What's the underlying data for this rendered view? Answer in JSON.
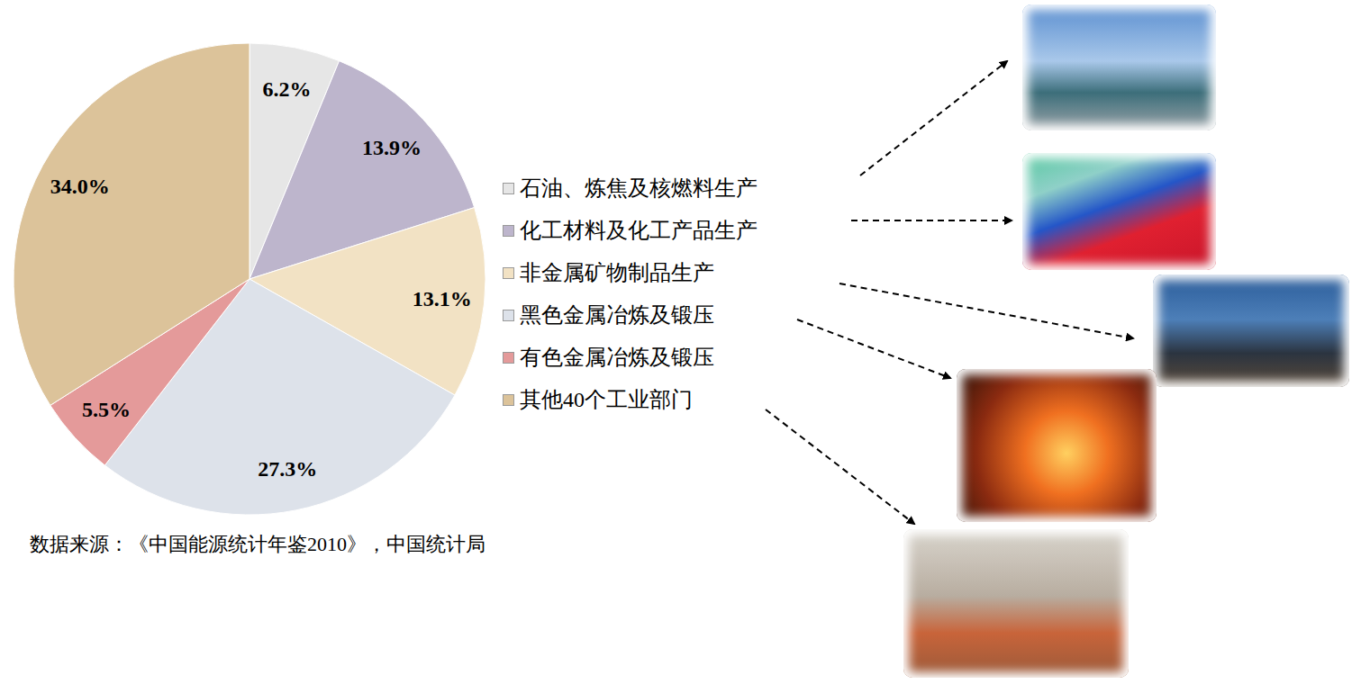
{
  "chart_data": {
    "type": "pie",
    "categories": [
      "石油、炼焦及核燃料生产",
      "化工材料及化工产品生产",
      "非金属矿物制品生产",
      "黑色金属冶炼及锻压",
      "有色金属冶炼及锻压",
      "其他40个工业部门"
    ],
    "values": [
      6.2,
      13.9,
      13.1,
      27.3,
      5.5,
      34.0
    ],
    "value_labels": [
      "6.2%",
      "13.9%",
      "13.1%",
      "27.3%",
      "5.5%",
      "34.0%"
    ],
    "colors": [
      "#e6e6e6",
      "#bdb5cc",
      "#f2e2c4",
      "#dde2ea",
      "#e49a9a",
      "#dcc39a"
    ],
    "data_labels": true,
    "legend": "right",
    "annotations": [
      "数据来源：《中国能源统计年鉴2010》，中国统计局"
    ]
  }
}
